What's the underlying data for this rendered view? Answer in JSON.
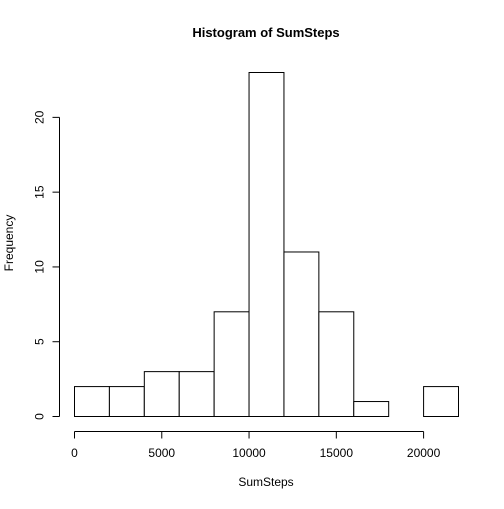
{
  "chart_data": {
    "type": "bar",
    "title": "Histogram of SumSteps",
    "xlabel": "SumSteps",
    "ylabel": "Frequency",
    "bin_edges": [
      0,
      2000,
      4000,
      6000,
      8000,
      10000,
      12000,
      14000,
      16000,
      18000,
      20000,
      22000
    ],
    "values": [
      2,
      2,
      3,
      3,
      7,
      23,
      11,
      7,
      1,
      0,
      2
    ],
    "xlim": [
      0,
      22000
    ],
    "ylim": [
      0,
      23
    ],
    "x_ticks": [
      0,
      5000,
      10000,
      15000,
      20000
    ],
    "x_tick_labels": [
      "0",
      "5000",
      "10000",
      "15000",
      "20000"
    ],
    "y_ticks": [
      0,
      5,
      10,
      15,
      20
    ],
    "y_tick_labels": [
      "0",
      "5",
      "10",
      "15",
      "20"
    ],
    "grid": false,
    "bar_fill": "#ffffff",
    "bar_stroke": "#000000"
  }
}
